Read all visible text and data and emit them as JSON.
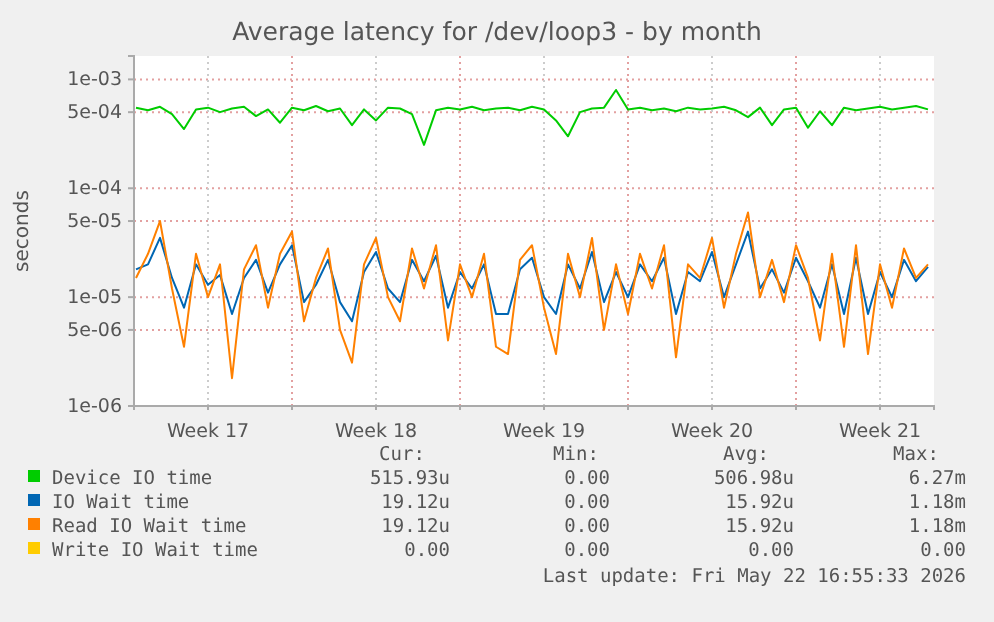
{
  "chart_data": {
    "type": "line",
    "title": "Average latency for /dev/loop3 - by month",
    "ylabel": "seconds",
    "log": true,
    "grid": true,
    "legend": "bottom",
    "ylim": [
      1e-06,
      0.00164
    ],
    "yticks": [
      {
        "value": 1e-06,
        "label": "1e-06"
      },
      {
        "value": 5e-06,
        "label": "5e-06"
      },
      {
        "value": 1e-05,
        "label": "1e-05"
      },
      {
        "value": 5e-05,
        "label": "5e-05"
      },
      {
        "value": 0.0001,
        "label": "1e-04"
      },
      {
        "value": 0.0005,
        "label": "5e-04"
      },
      {
        "value": 0.001,
        "label": "1e-03"
      }
    ],
    "xlim": [
      "2026-04-20T10:00",
      "2026-05-23T18:00"
    ],
    "xticks": [
      {
        "value": "2026-04-23T12:00",
        "label": "Week 17"
      },
      {
        "value": "2026-04-27T00:00",
        "label": null
      },
      {
        "value": "2026-04-30T12:00",
        "label": "Week 18"
      },
      {
        "value": "2026-05-04T00:00",
        "label": null
      },
      {
        "value": "2026-05-07T12:00",
        "label": "Week 19"
      },
      {
        "value": "2026-05-11T00:00",
        "label": null
      },
      {
        "value": "2026-05-14T12:00",
        "label": "Week 20"
      },
      {
        "value": "2026-05-18T00:00",
        "label": null
      },
      {
        "value": "2026-05-21T12:00",
        "label": "Week 21"
      }
    ],
    "x": [
      "2026-04-20T12:00",
      "2026-04-21T00:00",
      "2026-04-21T12:00",
      "2026-04-22T00:00",
      "2026-04-22T12:00",
      "2026-04-23T00:00",
      "2026-04-23T12:00",
      "2026-04-24T00:00",
      "2026-04-24T12:00",
      "2026-04-25T00:00",
      "2026-04-25T12:00",
      "2026-04-26T00:00",
      "2026-04-26T12:00",
      "2026-04-27T00:00",
      "2026-04-27T12:00",
      "2026-04-28T00:00",
      "2026-04-28T12:00",
      "2026-04-29T00:00",
      "2026-04-29T12:00",
      "2026-04-30T00:00",
      "2026-04-30T12:00",
      "2026-05-01T00:00",
      "2026-05-01T12:00",
      "2026-05-02T00:00",
      "2026-05-02T12:00",
      "2026-05-03T00:00",
      "2026-05-03T12:00",
      "2026-05-04T00:00",
      "2026-05-04T12:00",
      "2026-05-05T00:00",
      "2026-05-05T12:00",
      "2026-05-06T00:00",
      "2026-05-06T12:00",
      "2026-05-07T00:00",
      "2026-05-07T12:00",
      "2026-05-08T00:00",
      "2026-05-08T12:00",
      "2026-05-09T00:00",
      "2026-05-09T12:00",
      "2026-05-10T00:00",
      "2026-05-10T12:00",
      "2026-05-11T00:00",
      "2026-05-11T12:00",
      "2026-05-12T00:00",
      "2026-05-12T12:00",
      "2026-05-13T00:00",
      "2026-05-13T12:00",
      "2026-05-14T00:00",
      "2026-05-14T12:00",
      "2026-05-15T00:00",
      "2026-05-15T12:00",
      "2026-05-16T00:00",
      "2026-05-16T12:00",
      "2026-05-17T00:00",
      "2026-05-17T12:00",
      "2026-05-18T00:00",
      "2026-05-18T12:00",
      "2026-05-19T00:00",
      "2026-05-19T12:00",
      "2026-05-20T00:00",
      "2026-05-20T12:00",
      "2026-05-21T00:00",
      "2026-05-21T12:00",
      "2026-05-22T00:00",
      "2026-05-22T12:00",
      "2026-05-23T00:00",
      "2026-05-23T12:00"
    ],
    "series": [
      {
        "name": "Device IO time",
        "color": "#00cc00",
        "values": [
          0.00055,
          0.00052,
          0.00056,
          0.00048,
          0.00035,
          0.00053,
          0.00055,
          0.0005,
          0.00054,
          0.00056,
          0.00046,
          0.00053,
          0.0004,
          0.00055,
          0.00052,
          0.00057,
          0.00051,
          0.00054,
          0.00038,
          0.00053,
          0.00042,
          0.00055,
          0.00054,
          0.00048,
          0.00025,
          0.00052,
          0.00055,
          0.00053,
          0.00056,
          0.00052,
          0.00054,
          0.00055,
          0.00052,
          0.00056,
          0.00053,
          0.00042,
          0.0003,
          0.0005,
          0.00054,
          0.00055,
          0.0008,
          0.00053,
          0.00055,
          0.00052,
          0.00054,
          0.00051,
          0.00055,
          0.00053,
          0.00054,
          0.00056,
          0.00052,
          0.00045,
          0.00055,
          0.00038,
          0.00053,
          0.00055,
          0.00036,
          0.00051,
          0.00038,
          0.00055,
          0.00052,
          0.00054,
          0.00056,
          0.00053,
          0.00055,
          0.00057,
          0.00053
        ]
      },
      {
        "name": "IO Wait time",
        "color": "#0066b3",
        "values": [
          1.8e-05,
          2e-05,
          3.5e-05,
          1.5e-05,
          8e-06,
          2e-05,
          1.3e-05,
          1.6e-05,
          7e-06,
          1.5e-05,
          2.2e-05,
          1.1e-05,
          2e-05,
          3e-05,
          9e-06,
          1.3e-05,
          2.2e-05,
          9e-06,
          6e-06,
          1.7e-05,
          2.6e-05,
          1.2e-05,
          9e-06,
          2.2e-05,
          1.4e-05,
          2.4e-05,
          8e-06,
          1.7e-05,
          1.2e-05,
          2e-05,
          7e-06,
          7e-06,
          1.8e-05,
          2.3e-05,
          1e-05,
          7e-06,
          2e-05,
          1.2e-05,
          2.6e-05,
          9e-06,
          1.7e-05,
          1e-05,
          2e-05,
          1.4e-05,
          2.3e-05,
          7e-06,
          1.7e-05,
          1.4e-05,
          2.6e-05,
          1e-05,
          2e-05,
          4e-05,
          1.2e-05,
          1.8e-05,
          1.1e-05,
          2.3e-05,
          1.4e-05,
          8e-06,
          2e-05,
          7e-06,
          2.3e-05,
          7e-06,
          1.7e-05,
          1e-05,
          2.2e-05,
          1.4e-05,
          1.9e-05
        ]
      },
      {
        "name": "Read IO Wait time",
        "color": "#ff8000",
        "values": [
          1.5e-05,
          2.5e-05,
          5e-05,
          1.2e-05,
          3.5e-06,
          2.5e-05,
          1e-05,
          2e-05,
          1.8e-06,
          1.8e-05,
          3e-05,
          8e-06,
          2.5e-05,
          4e-05,
          6e-06,
          1.5e-05,
          2.8e-05,
          5e-06,
          2.5e-06,
          2e-05,
          3.5e-05,
          1e-05,
          6e-06,
          2.8e-05,
          1.2e-05,
          3e-05,
          4e-06,
          2e-05,
          1e-05,
          2.5e-05,
          3.5e-06,
          3e-06,
          2.2e-05,
          3e-05,
          8e-06,
          3e-06,
          2.5e-05,
          1e-05,
          3.5e-05,
          5e-06,
          2e-05,
          7e-06,
          2.5e-05,
          1.2e-05,
          3e-05,
          2.8e-06,
          2e-05,
          1.5e-05,
          3.5e-05,
          8e-06,
          2.5e-05,
          6e-05,
          1e-05,
          2.2e-05,
          9e-06,
          3e-05,
          1.5e-05,
          4e-06,
          2.5e-05,
          3.5e-06,
          3e-05,
          3e-06,
          2e-05,
          8e-06,
          2.8e-05,
          1.5e-05,
          2e-05
        ]
      },
      {
        "name": "Write IO Wait time",
        "color": "#ffcc00",
        "values": [
          null,
          null,
          null,
          null,
          null,
          null,
          null,
          null,
          null,
          null,
          null,
          null,
          null,
          null,
          null,
          null,
          null,
          null,
          null,
          null,
          null,
          null,
          null,
          null,
          null,
          null,
          null,
          null,
          null,
          null,
          null,
          null,
          null,
          null,
          null,
          null,
          null,
          null,
          null,
          null,
          null,
          null,
          null,
          null,
          null,
          null,
          null,
          null,
          null,
          null,
          null,
          null,
          null,
          null,
          null,
          null,
          null,
          null,
          null,
          null,
          null,
          null,
          null,
          null,
          null,
          null,
          null
        ]
      }
    ],
    "annotations": [
      "Cur:",
      "Min:",
      "Avg:",
      "Max:",
      "515.93u",
      "0.00",
      "506.98u",
      "6.27m",
      "19.12u",
      "0.00",
      "15.92u",
      "1.18m",
      "19.12u",
      "0.00",
      "15.92u",
      "1.18m",
      "0.00",
      "0.00",
      "0.00",
      "0.00",
      "Last update: Fri May 22 16:55:33 2026"
    ]
  }
}
